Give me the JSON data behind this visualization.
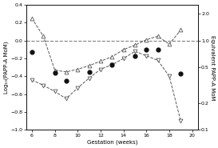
{
  "xlabel": "Gestation (weeks)",
  "ylabel_left": "Log₁₀(PAPP-A MoM)",
  "ylabel_right": "Equivalent PAPP-A MoM",
  "xlim": [
    5.5,
    20.5
  ],
  "ylim_left": [
    -1.0,
    0.4
  ],
  "xticks": [
    6,
    8,
    10,
    12,
    14,
    16,
    18,
    20
  ],
  "yticks_left": [
    -1.0,
    -0.8,
    -0.6,
    -0.4,
    -0.2,
    0.0,
    0.2,
    0.4
  ],
  "yticks_right": [
    0.1,
    0.2,
    0.5,
    1.0,
    2.0
  ],
  "hline_y": 0.0,
  "series_filled_circles": {
    "x": [
      6,
      8,
      9,
      11,
      13,
      15,
      16,
      17,
      19
    ],
    "y": [
      -0.13,
      -0.36,
      -0.45,
      -0.35,
      -0.27,
      -0.17,
      -0.1,
      -0.1,
      -0.37
    ]
  },
  "series_down_triangles": {
    "x": [
      6,
      7,
      8,
      9,
      10,
      11,
      12,
      13,
      14,
      15,
      16,
      17,
      18,
      19
    ],
    "y": [
      -0.44,
      -0.5,
      -0.57,
      -0.65,
      -0.53,
      -0.42,
      -0.32,
      -0.27,
      -0.2,
      -0.12,
      -0.17,
      -0.22,
      -0.4,
      -0.9
    ]
  },
  "series_up_triangles": {
    "x": [
      6,
      7,
      8,
      9,
      10,
      11,
      12,
      13,
      14,
      15,
      16,
      17,
      18,
      19
    ],
    "y": [
      0.25,
      0.05,
      -0.33,
      -0.35,
      -0.32,
      -0.28,
      -0.23,
      -0.18,
      -0.1,
      -0.05,
      0.01,
      0.05,
      -0.04,
      0.12
    ]
  },
  "background_color": "#ffffff",
  "line_color": "#555555",
  "dot_color": "#111111",
  "marker_size": 3.5,
  "linewidth": 0.7,
  "font_size_labels": 5,
  "font_size_ticks": 4.5
}
